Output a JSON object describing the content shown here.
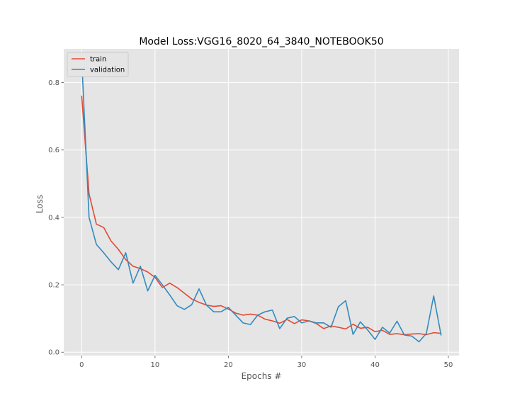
{
  "chart_data": {
    "type": "line",
    "title": "Model Loss:VGG16_8020_64_3840_NOTEBOOK50",
    "xlabel": "Epochs #",
    "ylabel": "Loss",
    "xlim": [
      -2.45,
      51.45
    ],
    "ylim": [
      -0.01,
      0.9
    ],
    "xticks": [
      0,
      10,
      20,
      30,
      40,
      50
    ],
    "yticks": [
      0.0,
      0.2,
      0.4,
      0.6,
      0.8
    ],
    "xtick_labels": [
      "0",
      "10",
      "20",
      "30",
      "40",
      "50"
    ],
    "ytick_labels": [
      "0.0",
      "0.2",
      "0.4",
      "0.6",
      "0.8"
    ],
    "grid": true,
    "legend_position": "top-left",
    "x": [
      0,
      1,
      2,
      3,
      4,
      5,
      6,
      7,
      8,
      9,
      10,
      11,
      12,
      13,
      14,
      15,
      16,
      17,
      18,
      19,
      20,
      21,
      22,
      23,
      24,
      25,
      26,
      27,
      28,
      29,
      30,
      31,
      32,
      33,
      34,
      35,
      36,
      37,
      38,
      39,
      40,
      41,
      42,
      43,
      44,
      45,
      46,
      47,
      48,
      49
    ],
    "series": [
      {
        "name": "train",
        "color": "#E24A33",
        "values": [
          0.76,
          0.47,
          0.38,
          0.37,
          0.33,
          0.305,
          0.275,
          0.255,
          0.248,
          0.238,
          0.222,
          0.192,
          0.205,
          0.192,
          0.175,
          0.158,
          0.148,
          0.14,
          0.136,
          0.138,
          0.128,
          0.116,
          0.11,
          0.113,
          0.11,
          0.098,
          0.093,
          0.086,
          0.097,
          0.085,
          0.096,
          0.093,
          0.085,
          0.07,
          0.078,
          0.074,
          0.069,
          0.083,
          0.071,
          0.074,
          0.061,
          0.065,
          0.053,
          0.055,
          0.052,
          0.054,
          0.055,
          0.052,
          0.058,
          0.056
        ]
      },
      {
        "name": "validation",
        "color": "#348ABD",
        "values": [
          0.87,
          0.4,
          0.32,
          0.295,
          0.268,
          0.245,
          0.295,
          0.205,
          0.255,
          0.182,
          0.228,
          0.2,
          0.17,
          0.138,
          0.127,
          0.141,
          0.188,
          0.14,
          0.12,
          0.12,
          0.133,
          0.11,
          0.087,
          0.082,
          0.11,
          0.12,
          0.125,
          0.07,
          0.101,
          0.106,
          0.087,
          0.093,
          0.087,
          0.087,
          0.074,
          0.135,
          0.153,
          0.053,
          0.09,
          0.066,
          0.038,
          0.074,
          0.057,
          0.092,
          0.051,
          0.048,
          0.031,
          0.056,
          0.167,
          0.051
        ]
      }
    ]
  },
  "colors": {
    "plot_background": "#E5E5E5",
    "grid": "#FFFFFF",
    "legend_background": "#E5E5E5",
    "legend_border": "#CCCCCC"
  }
}
